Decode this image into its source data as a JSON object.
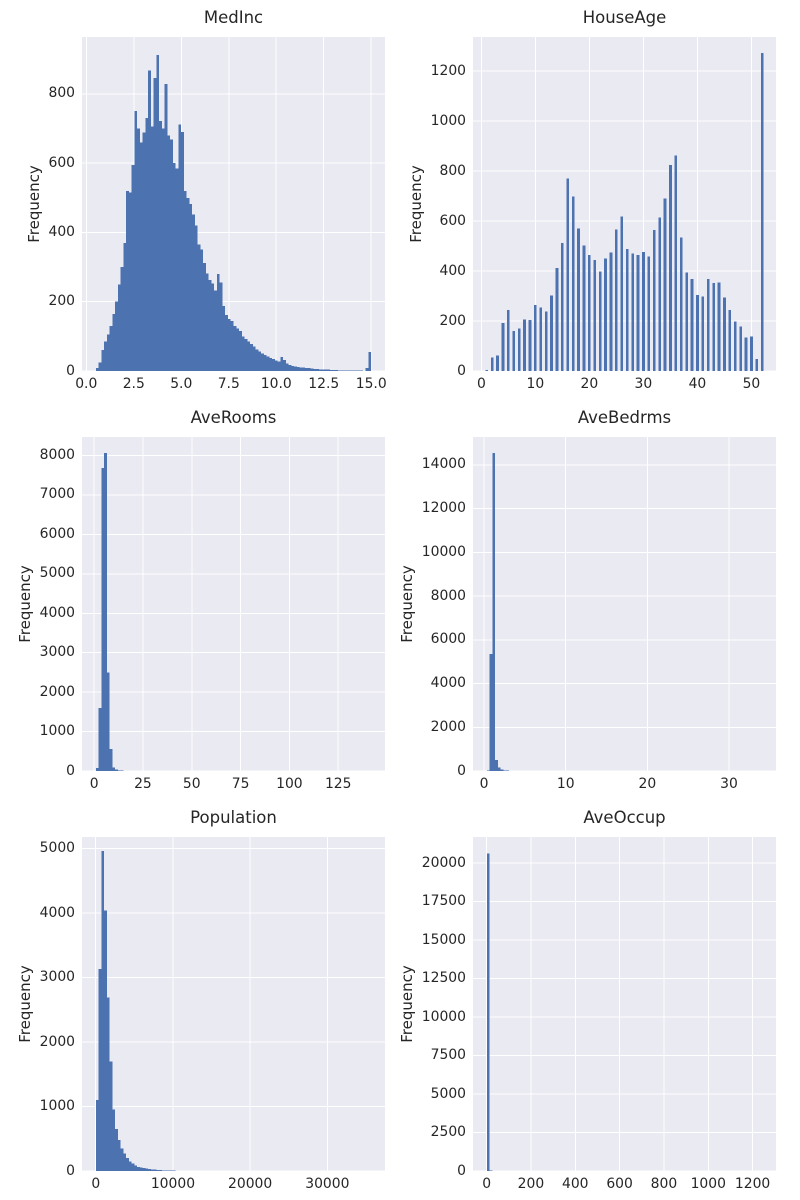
{
  "figure": {
    "background": "#ffffff",
    "axes_background": "#eaeaf2",
    "grid_color": "#ffffff",
    "bar_color": "#4c72b0",
    "text_color": "#262626"
  },
  "chart_data": [
    {
      "type": "bar",
      "title": "MedInc",
      "ylabel": "Frequency",
      "bars": "contiguous",
      "bin_start": 0.5,
      "bin_end": 15.0,
      "xlim": [
        -0.225,
        15.725
      ],
      "ylim": [
        0,
        964
      ],
      "xticks": [
        0,
        2.5,
        5,
        7.5,
        10,
        12.5,
        15
      ],
      "xtick_labels": [
        "0.0",
        "2.5",
        "5.0",
        "7.5",
        "10.0",
        "12.5",
        "15.0"
      ],
      "yticks": [
        0,
        200,
        400,
        600,
        800
      ],
      "ytick_labels": [
        "0",
        "200",
        "400",
        "600",
        "800"
      ],
      "heights": [
        8,
        25,
        60,
        85,
        105,
        130,
        165,
        200,
        250,
        300,
        370,
        520,
        515,
        595,
        750,
        700,
        660,
        688,
        730,
        868,
        705,
        845,
        912,
        722,
        700,
        828,
        680,
        668,
        600,
        585,
        712,
        690,
        520,
        500,
        482,
        452,
        420,
        365,
        350,
        312,
        282,
        262,
        252,
        232,
        280,
        255,
        188,
        162,
        150,
        145,
        130,
        122,
        115,
        100,
        92,
        85,
        78,
        70,
        62,
        56,
        50,
        46,
        42,
        38,
        35,
        30,
        28,
        40,
        32,
        22,
        18,
        15,
        13,
        12,
        10,
        10,
        8,
        8,
        7,
        6,
        6,
        5,
        5,
        4,
        4,
        3,
        3,
        3,
        2,
        2,
        2,
        1,
        1,
        1,
        1,
        1,
        1,
        0,
        8,
        55
      ]
    },
    {
      "type": "bar",
      "title": "HouseAge",
      "ylabel": "Frequency",
      "bars": "discrete",
      "x_start": 1,
      "x_step": 1,
      "bar_width": 0.5,
      "xlim": [
        -1.55,
        54.55
      ],
      "ylim": [
        0,
        1337
      ],
      "xticks": [
        0,
        10,
        20,
        30,
        40,
        50
      ],
      "xtick_labels": [
        "0",
        "10",
        "20",
        "30",
        "40",
        "50"
      ],
      "yticks": [
        0,
        200,
        400,
        600,
        800,
        1000,
        1200
      ],
      "ytick_labels": [
        "0",
        "200",
        "400",
        "600",
        "800",
        "1000",
        "1200"
      ],
      "heights": [
        5,
        55,
        62,
        192,
        245,
        160,
        170,
        207,
        205,
        264,
        254,
        238,
        302,
        412,
        512,
        770,
        698,
        570,
        502,
        465,
        444,
        398,
        450,
        475,
        566,
        618,
        488,
        470,
        465,
        476,
        458,
        565,
        614,
        690,
        824,
        862,
        535,
        394,
        368,
        304,
        298,
        368,
        353,
        355,
        294,
        245,
        198,
        178,
        134,
        139,
        48,
        1273
      ]
    },
    {
      "type": "bar",
      "title": "AveRooms",
      "ylabel": "Frequency",
      "bars": "contiguous",
      "bin_start": 0.85,
      "bin_end": 141.91,
      "xlim": [
        -6.21,
        148.96
      ],
      "ylim": [
        0,
        8470
      ],
      "xticks": [
        0,
        25,
        50,
        75,
        100,
        125
      ],
      "xtick_labels": [
        "0",
        "25",
        "50",
        "75",
        "100",
        "125"
      ],
      "yticks": [
        0,
        1000,
        2000,
        3000,
        4000,
        5000,
        6000,
        7000,
        8000
      ],
      "ytick_labels": [
        "0",
        "1000",
        "2000",
        "3000",
        "4000",
        "5000",
        "6000",
        "7000",
        "8000"
      ],
      "heights": [
        75,
        1600,
        7680,
        8060,
        2500,
        560,
        90,
        35,
        18,
        10,
        6,
        4,
        3,
        2,
        2,
        1,
        1,
        1,
        1,
        0,
        0,
        0,
        1,
        0,
        0,
        0,
        0,
        0,
        0,
        0,
        0,
        0,
        0,
        0,
        0,
        0,
        0,
        0,
        0,
        0,
        0,
        0,
        0,
        0,
        0,
        0,
        0,
        0,
        0,
        0,
        0,
        0,
        0,
        0,
        0,
        0,
        0,
        0,
        0,
        0,
        0,
        0,
        0,
        0,
        0,
        0,
        0,
        0,
        0,
        0,
        0,
        0,
        0,
        0,
        0,
        0,
        0,
        0,
        0,
        0,
        0,
        0,
        0,
        0,
        0,
        0,
        0,
        0,
        0,
        0,
        0,
        0,
        0,
        0,
        0,
        0,
        0,
        0,
        0,
        1
      ]
    },
    {
      "type": "bar",
      "title": "AveBedrms",
      "ylabel": "Frequency",
      "bars": "contiguous",
      "bin_start": 0.33,
      "bin_end": 34.07,
      "xlim": [
        -1.36,
        35.76
      ],
      "ylim": [
        0,
        15280
      ],
      "xticks": [
        0,
        10,
        20,
        30
      ],
      "xtick_labels": [
        "0",
        "10",
        "20",
        "30"
      ],
      "yticks": [
        0,
        2000,
        4000,
        6000,
        8000,
        10000,
        12000,
        14000
      ],
      "ytick_labels": [
        "0",
        "2000",
        "4000",
        "6000",
        "8000",
        "10000",
        "12000",
        "14000"
      ],
      "heights": [
        30,
        5350,
        14550,
        500,
        160,
        60,
        30,
        18,
        10,
        6,
        4,
        3,
        2,
        2,
        1,
        1,
        1,
        0,
        0,
        0,
        0,
        0,
        0,
        0,
        0,
        0,
        0,
        0,
        0,
        0,
        0,
        0,
        0,
        0,
        0,
        0,
        0,
        0,
        0,
        0,
        0,
        0,
        0,
        0,
        0,
        0,
        0,
        0,
        0,
        0,
        0,
        0,
        0,
        0,
        0,
        0,
        0,
        0,
        0,
        0,
        0,
        0,
        0,
        0,
        0,
        0,
        0,
        0,
        0,
        0,
        0,
        0,
        0,
        0,
        0,
        0,
        0,
        0,
        0,
        0,
        0,
        0,
        0,
        0,
        0,
        0,
        0,
        0,
        0,
        0,
        0,
        0,
        0,
        0,
        0,
        0,
        0,
        0,
        0,
        1
      ]
    },
    {
      "type": "bar",
      "title": "Population",
      "ylabel": "Frequency",
      "bars": "contiguous",
      "bin_start": 3,
      "bin_end": 35682,
      "xlim": [
        -1781,
        37466
      ],
      "ylim": [
        0,
        5180
      ],
      "xticks": [
        0,
        10000,
        20000,
        30000
      ],
      "xtick_labels": [
        "0",
        "10000",
        "20000",
        "30000"
      ],
      "yticks": [
        0,
        1000,
        2000,
        3000,
        4000,
        5000
      ],
      "ytick_labels": [
        "0",
        "1000",
        "2000",
        "3000",
        "4000",
        "5000"
      ],
      "heights": [
        1100,
        3130,
        4960,
        4040,
        2690,
        1700,
        950,
        650,
        480,
        350,
        270,
        200,
        150,
        115,
        85,
        65,
        55,
        45,
        38,
        30,
        25,
        20,
        15,
        12,
        10,
        8,
        6,
        5,
        4,
        3,
        3,
        2,
        2,
        2,
        1,
        1,
        1,
        1,
        1,
        1,
        0,
        0,
        0,
        0,
        0,
        0,
        0,
        0,
        0,
        0,
        0,
        0,
        0,
        0,
        0,
        0,
        0,
        0,
        0,
        0,
        0,
        0,
        0,
        0,
        0,
        0,
        0,
        0,
        0,
        0,
        0,
        0,
        0,
        0,
        0,
        0,
        0,
        0,
        0,
        0,
        0,
        0,
        0,
        0,
        0,
        0,
        0,
        0,
        0,
        0,
        0,
        0,
        0,
        0,
        0,
        0,
        0,
        0,
        0,
        1
      ]
    },
    {
      "type": "bar",
      "title": "AveOccup",
      "ylabel": "Frequency",
      "bars": "contiguous",
      "bin_start": 0.69,
      "bin_end": 1243.33,
      "xlim": [
        -61.4,
        1305.5
      ],
      "ylim": [
        0,
        21700
      ],
      "xticks": [
        0,
        200,
        400,
        600,
        800,
        1000,
        1200
      ],
      "xtick_labels": [
        "0",
        "200",
        "400",
        "600",
        "800",
        "1000",
        "1200"
      ],
      "yticks": [
        0,
        2500,
        5000,
        7500,
        10000,
        12500,
        15000,
        17500,
        20000
      ],
      "ytick_labels": [
        "0",
        "2500",
        "5000",
        "7500",
        "10000",
        "12500",
        "15000",
        "17500",
        "20000"
      ],
      "heights": [
        20640,
        30,
        5,
        2,
        1,
        1,
        0,
        0,
        0,
        0,
        0,
        0,
        0,
        0,
        0,
        0,
        0,
        0,
        0,
        0,
        0,
        0,
        0,
        0,
        0,
        0,
        0,
        0,
        0,
        0,
        0,
        0,
        0,
        0,
        0,
        0,
        0,
        0,
        0,
        0,
        0,
        0,
        0,
        0,
        0,
        0,
        0,
        0,
        0,
        0,
        0,
        0,
        0,
        0,
        0,
        0,
        0,
        0,
        0,
        0,
        0,
        0,
        0,
        0,
        0,
        0,
        0,
        0,
        0,
        0,
        0,
        0,
        0,
        0,
        0,
        0,
        0,
        0,
        0,
        0,
        0,
        0,
        0,
        0,
        0,
        0,
        0,
        0,
        0,
        0,
        0,
        0,
        0,
        0,
        0,
        0,
        0,
        0,
        0,
        1
      ]
    }
  ]
}
